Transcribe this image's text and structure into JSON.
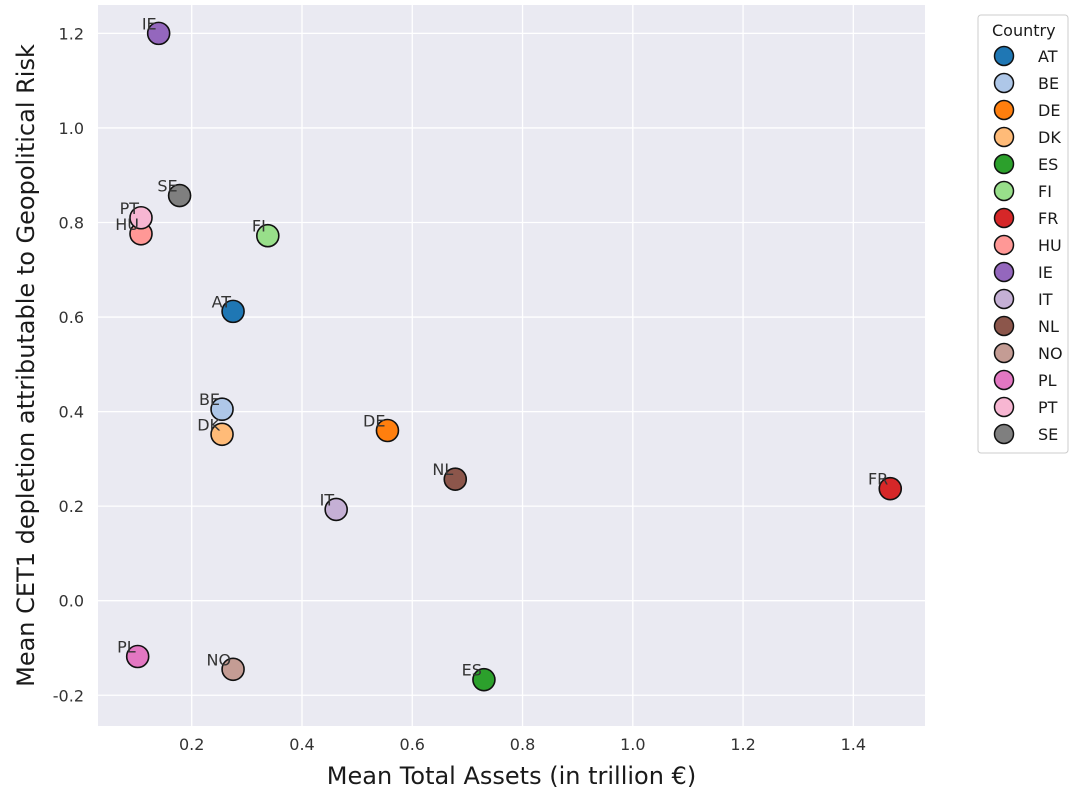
{
  "chart_data": {
    "type": "scatter",
    "xlabel": "Mean Total Assets (in trillion €)",
    "ylabel": "Mean CET1 depletion attributable to Geopolitical Risk",
    "xlim": [
      0.03,
      1.53
    ],
    "ylim": [
      -0.265,
      1.26
    ],
    "xticks": [
      "0.2",
      "0.4",
      "0.6",
      "0.8",
      "1.0",
      "1.2",
      "1.4"
    ],
    "yticks": [
      "-0.2",
      "0.0",
      "0.2",
      "0.4",
      "0.6",
      "0.8",
      "1.0",
      "1.2"
    ],
    "grid": true,
    "legend_title": "Country",
    "legend_placement": "outside-top-right",
    "points": [
      {
        "label": "AT",
        "x": 0.275,
        "y": 0.612,
        "color": "#1f77b4"
      },
      {
        "label": "BE",
        "x": 0.255,
        "y": 0.405,
        "color": "#aec7e8"
      },
      {
        "label": "DE",
        "x": 0.555,
        "y": 0.36,
        "color": "#ff7f0e"
      },
      {
        "label": "DK",
        "x": 0.255,
        "y": 0.352,
        "color": "#ffbb78"
      },
      {
        "label": "ES",
        "x": 0.73,
        "y": -0.167,
        "color": "#2ca02c"
      },
      {
        "label": "FI",
        "x": 0.338,
        "y": 0.772,
        "color": "#98df8a"
      },
      {
        "label": "FR",
        "x": 1.467,
        "y": 0.237,
        "color": "#d62728"
      },
      {
        "label": "HU",
        "x": 0.108,
        "y": 0.776,
        "color": "#ff9896"
      },
      {
        "label": "IE",
        "x": 0.14,
        "y": 1.2,
        "color": "#9467bd"
      },
      {
        "label": "IT",
        "x": 0.462,
        "y": 0.193,
        "color": "#c5b0d5"
      },
      {
        "label": "NL",
        "x": 0.678,
        "y": 0.257,
        "color": "#8c564b"
      },
      {
        "label": "NO",
        "x": 0.275,
        "y": -0.145,
        "color": "#c49c94"
      },
      {
        "label": "PL",
        "x": 0.102,
        "y": -0.118,
        "color": "#e377c2"
      },
      {
        "label": "PT",
        "x": 0.108,
        "y": 0.81,
        "color": "#f7b6d2"
      },
      {
        "label": "SE",
        "x": 0.178,
        "y": 0.857,
        "color": "#7f7f7f"
      }
    ]
  }
}
